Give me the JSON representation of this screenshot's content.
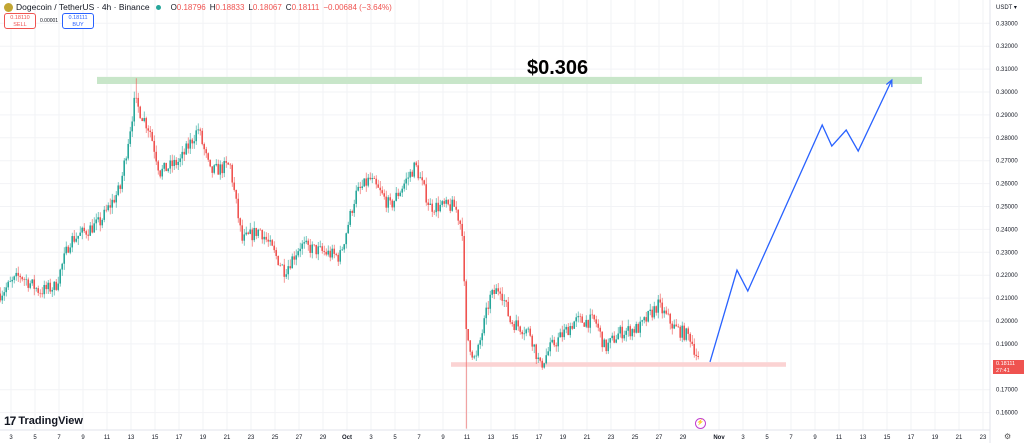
{
  "header": {
    "symbol": "Dogecoin / TetherUS · 4h · Binance",
    "open_label": "O",
    "open": "0.18796",
    "high_label": "H",
    "high": "0.18833",
    "low_label": "L",
    "low": "0.18067",
    "close_label": "C",
    "close": "0.18111",
    "change": "−0.00684 (−3.64%)"
  },
  "trade": {
    "sell_price": "0.18110",
    "sell_label": "SELL",
    "spread": "0.00001",
    "buy_price": "0.18111",
    "buy_label": "BUY"
  },
  "price_axis": {
    "currency": "USDT ▾",
    "last_price": "0.18111",
    "countdown": "27:41"
  },
  "annotations": {
    "target_label": "$0.306"
  },
  "branding": "TradingView",
  "colors": {
    "up": "#26a69a",
    "down": "#ef5350",
    "projection": "#2962ff",
    "resistance_band": "#c8e6c9",
    "support_band": "#fbd3d3"
  },
  "chart_data": {
    "type": "candlestick",
    "interval": "4h",
    "y_ticks": [
      "0.33000",
      "0.32000",
      "0.31000",
      "0.30000",
      "0.29000",
      "0.28000",
      "0.27000",
      "0.26000",
      "0.25000",
      "0.24000",
      "0.23000",
      "0.22000",
      "0.21000",
      "0.20000",
      "0.19000",
      "0.17000",
      "0.16000"
    ],
    "x_ticks": [
      "3",
      "5",
      "7",
      "9",
      "11",
      "13",
      "15",
      "17",
      "19",
      "21",
      "23",
      "25",
      "27",
      "29",
      "Oct",
      "3",
      "5",
      "7",
      "9",
      "11",
      "13",
      "15",
      "17",
      "19",
      "21",
      "23",
      "25",
      "27",
      "29",
      "Nov",
      "3",
      "5",
      "7",
      "9",
      "11",
      "13",
      "15",
      "17",
      "19",
      "21",
      "23"
    ],
    "x_tick_days": [
      3,
      5,
      7,
      9,
      11,
      13,
      15,
      17,
      19,
      21,
      23,
      25,
      27,
      29,
      31,
      33,
      35,
      37,
      39,
      41,
      43,
      45,
      47,
      49,
      51,
      53,
      55,
      57,
      59,
      62,
      64,
      66,
      68,
      70,
      72,
      74,
      76,
      78,
      80,
      82,
      84
    ],
    "price_path_day_since_sep0": [
      [
        2.1,
        0.212
      ],
      [
        3.75,
        0.22
      ],
      [
        5.4,
        0.213
      ],
      [
        6.7,
        0.215
      ],
      [
        7.9,
        0.235
      ],
      [
        10.4,
        0.243
      ],
      [
        12.1,
        0.258
      ],
      [
        13.3,
        0.296
      ],
      [
        14.6,
        0.283
      ],
      [
        15.4,
        0.265
      ],
      [
        17.1,
        0.27
      ],
      [
        18.6,
        0.284
      ],
      [
        19.6,
        0.265
      ],
      [
        21.25,
        0.268
      ],
      [
        22.25,
        0.235
      ],
      [
        23.75,
        0.24
      ],
      [
        25.8,
        0.222
      ],
      [
        27.1,
        0.233
      ],
      [
        30.4,
        0.228
      ],
      [
        31.7,
        0.255
      ],
      [
        32.9,
        0.262
      ],
      [
        34.6,
        0.25
      ],
      [
        36.7,
        0.268
      ],
      [
        37.9,
        0.25
      ],
      [
        40.0,
        0.25
      ],
      [
        40.6,
        0.24
      ],
      [
        40.9,
        0.195
      ],
      [
        41.7,
        0.182
      ],
      [
        42.9,
        0.21
      ],
      [
        43.75,
        0.215
      ],
      [
        44.6,
        0.2
      ],
      [
        46.25,
        0.195
      ],
      [
        47.1,
        0.18
      ],
      [
        47.9,
        0.188
      ],
      [
        50.0,
        0.2
      ],
      [
        51.7,
        0.2
      ],
      [
        52.5,
        0.188
      ],
      [
        53.75,
        0.195
      ],
      [
        55.4,
        0.197
      ],
      [
        56.9,
        0.207
      ],
      [
        58.3,
        0.197
      ],
      [
        59.6,
        0.193
      ],
      [
        60.4,
        0.181
      ]
    ],
    "extreme_wicks": [
      {
        "day": 13.4,
        "high": 0.306
      },
      {
        "day": 40.9,
        "low": 0.153
      }
    ],
    "projection": [
      [
        61.25,
        0.1821
      ],
      [
        63.5,
        0.2222
      ],
      [
        64.4,
        0.2131
      ],
      [
        70.6,
        0.2856
      ],
      [
        71.4,
        0.2764
      ],
      [
        72.6,
        0.2834
      ],
      [
        73.6,
        0.2742
      ],
      [
        76.4,
        0.3052
      ]
    ],
    "resistance_zone": [
      0.3035,
      0.3066
    ],
    "support_zone": [
      0.18,
      0.182
    ],
    "ylim": [
      0.153,
      0.335
    ]
  }
}
